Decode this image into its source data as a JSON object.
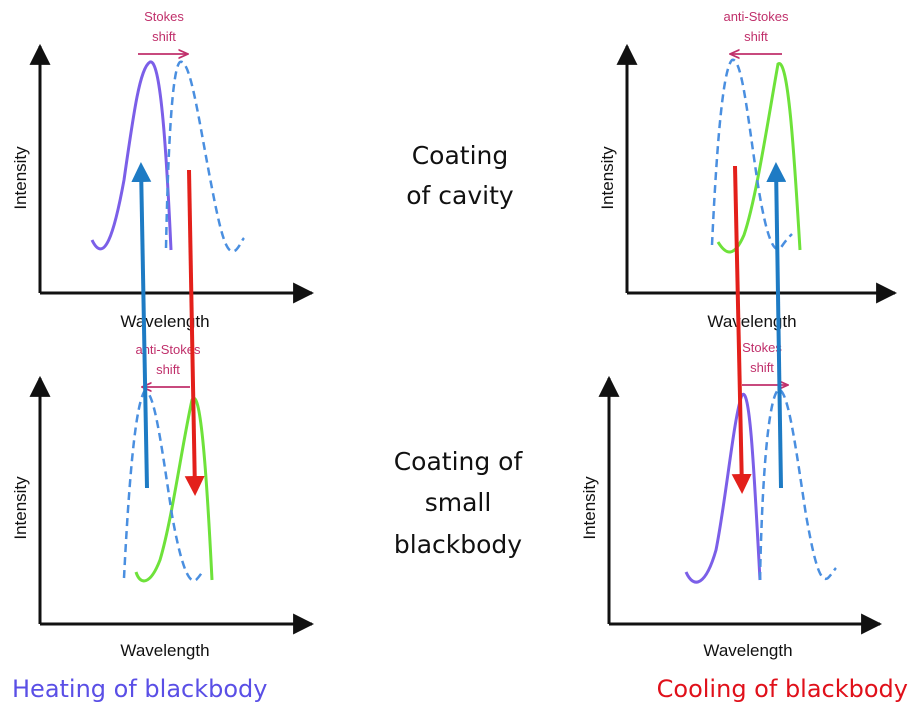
{
  "colors": {
    "axis": "#111111",
    "purple_curve": "#7b5fe8",
    "green_curve": "#6ee23a",
    "dashed_curve": "#4a8fe0",
    "shift_arrow": "#c0306b",
    "blue_arrow": "#1e7bc4",
    "red_arrow": "#e3201b",
    "heating_caption": "#5a4fe6",
    "cooling_caption": "#e0101a"
  },
  "panels": {
    "top_left": {
      "xlabel": "Wavelength",
      "ylabel": "Intensity",
      "shift_line1": "Stokes",
      "shift_line2": "shift"
    },
    "top_right": {
      "xlabel": "Wavelength",
      "ylabel": "Intensity",
      "shift_line1": "anti-Stokes",
      "shift_line2": "shift"
    },
    "bottom_left": {
      "xlabel": "Wavelength",
      "ylabel": "Intensity",
      "shift_line1": "anti-Stokes",
      "shift_line2": "shift"
    },
    "bottom_right": {
      "xlabel": "Wavelength",
      "ylabel": "Intensity",
      "shift_line1": "Stokes",
      "shift_line2": "shift"
    }
  },
  "center_labels": {
    "coating_cavity_line1": "Coating",
    "coating_cavity_line2": "of cavity",
    "coating_small_line1": "Coating of",
    "coating_small_line2": "small",
    "coating_small_line3": "blackbody"
  },
  "captions": {
    "heating": "Heating of blackbody",
    "cooling": "Cooling of blackbody"
  }
}
